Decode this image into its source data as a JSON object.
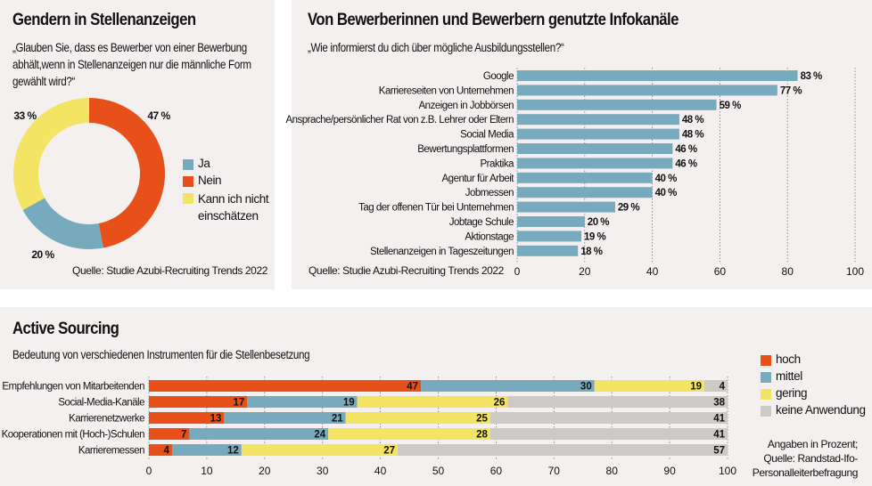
{
  "colors": {
    "orange": "#e8501a",
    "blue": "#78aabd",
    "yellow": "#f3e464",
    "gray": "#cdc9c4",
    "panel_bg": "#f4f0ef"
  },
  "left_panel": {
    "title": "Gendern in Stellenanzeigen",
    "question_lines": [
      "„Glauben Sie, dass es Bewerber von einer Bewerbung",
      "abhält,wenn in Stellenanzeigen nur die männliche Form",
      "gewählt wird?“"
    ],
    "source": "Quelle: Studie Azubi-Recruiting Trends 2022"
  },
  "right_panel": {
    "title": "Von Bewerberinnen und Bewerbern genutzte Infokanäle",
    "question": "„Wie informierst du dich über mögliche Ausbildungsstellen?“",
    "source": "Quelle: Studie Azubi-Recruiting Trends 2022"
  },
  "bottom_panel": {
    "title": "Active Sourcing",
    "subtitle": "Bedeutung von verschiedenen Instrumenten für die Stellenbesetzung",
    "note_lines": [
      "Angaben in Prozent;",
      "Quelle: Randstad-Ifo-",
      "Personalleiterbefragung"
    ]
  },
  "chart_data": [
    {
      "type": "pie",
      "title": "Gendern in Stellenanzeigen",
      "donut": true,
      "slices": [
        {
          "label": "Nein",
          "value": 47,
          "label_text": "47 %",
          "color": "#e8501a"
        },
        {
          "label": "Ja",
          "value": 20,
          "label_text": "20 %",
          "color": "#78aabd"
        },
        {
          "label": "Kann ich nicht einschätzen",
          "value": 33,
          "label_text": "33 %",
          "color": "#f3e464"
        }
      ],
      "legend": [
        {
          "label": "Ja",
          "color": "#78aabd"
        },
        {
          "label": "Nein",
          "color": "#e8501a"
        },
        {
          "label_lines": [
            "Kann ich nicht",
            "einschätzen"
          ],
          "color": "#f3e464"
        }
      ],
      "legend_position": "right"
    },
    {
      "type": "bar",
      "orientation": "horizontal",
      "title": "Von Bewerberinnen und Bewerbern genutzte Infokanäle",
      "categories": [
        "Google",
        "Karriereseiten von Unternehmen",
        "Anzeigen in Jobbörsen",
        "Ansprache/persönlicher Rat von z.B. Lehrer oder Eltern",
        "Social Media",
        "Bewertungsplattformen",
        "Praktika",
        "Agentur für Arbeit",
        "Jobmessen",
        "Tag der offenen Tür bei Unternehmen",
        "Jobtage Schule",
        "Aktionstage",
        "Stellenanzeigen in Tageszeitungen"
      ],
      "values": [
        83,
        77,
        59,
        48,
        48,
        46,
        46,
        40,
        40,
        29,
        20,
        19,
        18
      ],
      "value_suffix": " %",
      "xlim": [
        0,
        100
      ],
      "xticks": [
        0,
        20,
        40,
        60,
        80,
        100
      ],
      "grid": true,
      "bar_color": "#78aabd"
    },
    {
      "type": "bar",
      "orientation": "horizontal",
      "stacked": true,
      "title": "Active Sourcing",
      "subtitle": "Bedeutung von verschiedenen Instrumenten für die Stellenbesetzung",
      "categories": [
        "Empfehlungen von Mitarbeitenden",
        "Social-Media-Kanäle",
        "Karrierenetzwerke",
        "Kooperationen mit (Hoch-)Schulen",
        "Karrieremessen"
      ],
      "series": [
        {
          "name": "hoch",
          "color": "#e8501a",
          "values": [
            47,
            17,
            13,
            7,
            4
          ]
        },
        {
          "name": "mittel",
          "color": "#78aabd",
          "values": [
            30,
            19,
            21,
            24,
            12
          ]
        },
        {
          "name": "gering",
          "color": "#f3e464",
          "values": [
            19,
            26,
            25,
            28,
            27
          ]
        },
        {
          "name": "keine Anwendung",
          "color": "#cdc9c4",
          "values": [
            4,
            38,
            41,
            41,
            57
          ]
        }
      ],
      "xlim": [
        0,
        100
      ],
      "xticks": [
        0,
        10,
        20,
        30,
        40,
        50,
        60,
        70,
        80,
        90,
        100
      ],
      "grid": true,
      "legend_position": "right",
      "unit": "Prozent"
    }
  ]
}
